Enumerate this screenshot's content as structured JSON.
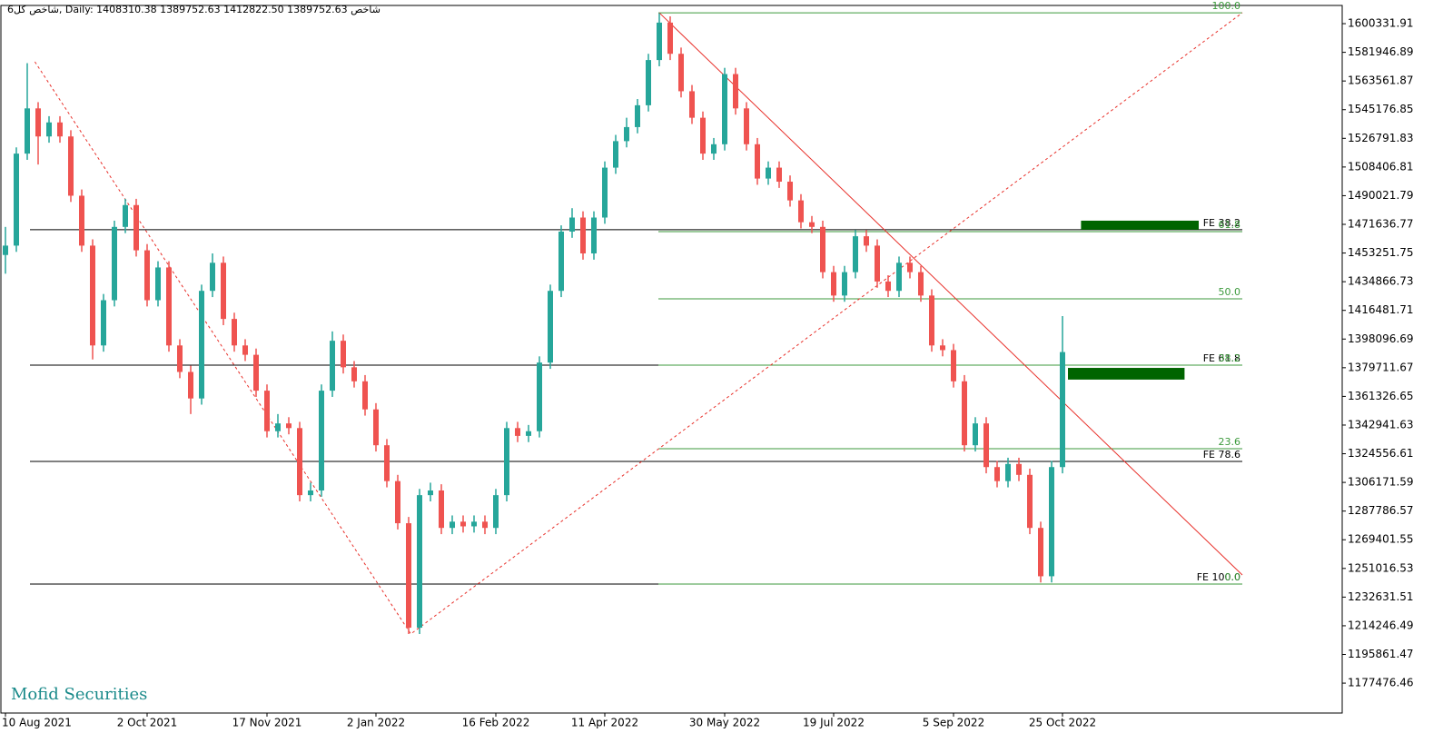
{
  "chart_data": {
    "type": "candlestick",
    "title": "شاخص کل6, Daily:  1408310.38 1389752.63 1412822.50 1389752.63  شاخص",
    "watermark": "Mofid Securities",
    "up_color": "#26a69a",
    "down_color": "#ef5350",
    "categories": [
      "10 Aug 2021",
      null,
      null,
      null,
      null,
      null,
      null,
      null,
      null,
      null,
      null,
      null,
      null,
      "2 Oct 2021",
      null,
      null,
      null,
      null,
      null,
      null,
      null,
      null,
      null,
      null,
      "17 Nov 2021",
      null,
      null,
      null,
      null,
      null,
      null,
      null,
      null,
      null,
      "2 Jan 2022",
      null,
      null,
      null,
      null,
      null,
      null,
      null,
      null,
      null,
      null,
      "16 Feb 2022",
      null,
      null,
      null,
      null,
      null,
      null,
      null,
      null,
      null,
      "11 Apr 2022",
      null,
      null,
      null,
      null,
      null,
      null,
      null,
      null,
      null,
      null,
      "30 May 2022",
      null,
      null,
      null,
      null,
      null,
      null,
      null,
      null,
      null,
      "19 Jul 2022",
      null,
      null,
      null,
      null,
      null,
      null,
      null,
      null,
      null,
      null,
      "5 Sep 2022",
      null,
      null,
      null,
      null,
      null,
      null,
      null,
      null,
      null,
      "25 Oct 2022"
    ],
    "open": [
      1452000,
      1458000,
      1517000,
      1546000,
      1528000,
      1537000,
      1528000,
      1490000,
      1458000,
      1394000,
      1423000,
      1470000,
      1484000,
      1455000,
      1423000,
      1444000,
      1394000,
      1377000,
      1360000,
      1429000,
      1447000,
      1411000,
      1394000,
      1388000,
      1365000,
      1339000,
      1344000,
      1341000,
      1298000,
      1301000,
      1365000,
      1397000,
      1380000,
      1371000,
      1353000,
      1330000,
      1307000,
      1280000,
      1213000,
      1298000,
      1301000,
      1277000,
      1281000,
      1278000,
      1281000,
      1277000,
      1298000,
      1341000,
      1336000,
      1339000,
      1383000,
      1429000,
      1467000,
      1476000,
      1453000,
      1476000,
      1508000,
      1525000,
      1534000,
      1548000,
      1577000,
      1601000,
      1581000,
      1557000,
      1540000,
      1517000,
      1523000,
      1568000,
      1546000,
      1523000,
      1501000,
      1508000,
      1499000,
      1487000,
      1473000,
      1470000,
      1441000,
      1426000,
      1441000,
      1464000,
      1458000,
      1435000,
      1429000,
      1447000,
      1441000,
      1426000,
      1394000,
      1391000,
      1371000,
      1330000,
      1344000,
      1316000,
      1307000,
      1318000,
      1311000,
      1277000,
      1246000,
      1316000
    ],
    "high": [
      1470000,
      1521000,
      1575000,
      1550000,
      1541000,
      1541000,
      1532000,
      1494000,
      1462000,
      1427000,
      1474000,
      1488000,
      1488000,
      1459000,
      1448000,
      1448000,
      1398000,
      1381000,
      1433000,
      1453000,
      1451000,
      1415000,
      1398000,
      1392000,
      1369000,
      1350000,
      1348000,
      1345000,
      1306000,
      1369000,
      1403000,
      1401000,
      1384000,
      1375000,
      1357000,
      1334000,
      1311000,
      1284000,
      1302000,
      1306000,
      1305000,
      1285000,
      1285000,
      1285000,
      1285000,
      1302000,
      1345000,
      1345000,
      1343000,
      1387000,
      1433000,
      1471000,
      1482000,
      1480000,
      1480000,
      1512000,
      1529000,
      1540000,
      1552000,
      1581000,
      1607000,
      1605000,
      1585000,
      1561000,
      1544000,
      1527000,
      1572000,
      1572000,
      1550000,
      1527000,
      1512000,
      1512000,
      1503000,
      1491000,
      1477000,
      1474000,
      1445000,
      1445000,
      1468000,
      1468000,
      1462000,
      1439000,
      1451000,
      1451000,
      1445000,
      1430000,
      1398000,
      1395000,
      1375000,
      1348000,
      1348000,
      1320000,
      1322000,
      1322000,
      1315000,
      1281000,
      1320000,
      1412822.5
    ],
    "low": [
      1440000,
      1454000,
      1513000,
      1510000,
      1524000,
      1524000,
      1486000,
      1454000,
      1385000,
      1390000,
      1419000,
      1466000,
      1451000,
      1419000,
      1419000,
      1390000,
      1373000,
      1350000,
      1356000,
      1425000,
      1407000,
      1390000,
      1384000,
      1361000,
      1335000,
      1335000,
      1337000,
      1294000,
      1294000,
      1297000,
      1361000,
      1376000,
      1367000,
      1349000,
      1326000,
      1303000,
      1276000,
      1209000,
      1209000,
      1294000,
      1273000,
      1273000,
      1274000,
      1274000,
      1273000,
      1273000,
      1294000,
      1332000,
      1332000,
      1335000,
      1379000,
      1425000,
      1463000,
      1449000,
      1449000,
      1472000,
      1504000,
      1521000,
      1530000,
      1544000,
      1573000,
      1577000,
      1553000,
      1536000,
      1513000,
      1513000,
      1519000,
      1542000,
      1519000,
      1497000,
      1497000,
      1495000,
      1483000,
      1469000,
      1466000,
      1437000,
      1422000,
      1422000,
      1437000,
      1454000,
      1431000,
      1425000,
      1425000,
      1437000,
      1422000,
      1390000,
      1387000,
      1367000,
      1326000,
      1326000,
      1312000,
      1303000,
      1303000,
      1307000,
      1273000,
      1242000,
      1242000,
      1312000
    ],
    "close": [
      1458000,
      1517000,
      1546000,
      1528000,
      1537000,
      1528000,
      1490000,
      1458000,
      1394000,
      1423000,
      1470000,
      1484000,
      1455000,
      1423000,
      1444000,
      1394000,
      1377000,
      1360000,
      1429000,
      1447000,
      1411000,
      1394000,
      1388000,
      1365000,
      1339000,
      1344000,
      1341000,
      1298000,
      1301000,
      1365000,
      1397000,
      1380000,
      1371000,
      1353000,
      1330000,
      1307000,
      1280000,
      1213000,
      1298000,
      1301000,
      1277000,
      1281000,
      1278000,
      1281000,
      1277000,
      1298000,
      1341000,
      1336000,
      1339000,
      1383000,
      1429000,
      1467000,
      1476000,
      1453000,
      1476000,
      1508000,
      1525000,
      1534000,
      1548000,
      1577000,
      1601000,
      1581000,
      1557000,
      1540000,
      1517000,
      1523000,
      1568000,
      1546000,
      1523000,
      1501000,
      1508000,
      1499000,
      1487000,
      1473000,
      1470000,
      1441000,
      1426000,
      1441000,
      1464000,
      1458000,
      1435000,
      1429000,
      1447000,
      1441000,
      1426000,
      1394000,
      1391000,
      1371000,
      1330000,
      1344000,
      1316000,
      1307000,
      1318000,
      1311000,
      1277000,
      1246000,
      1316000,
      1389752.63
    ],
    "ylim": [
      1158300,
      1612000
    ],
    "yticks": [
      1600331.91,
      1581946.89,
      1563561.87,
      1545176.85,
      1526791.83,
      1508406.81,
      1490021.79,
      1471636.77,
      1453251.75,
      1434866.73,
      1416481.71,
      1398096.69,
      1379711.67,
      1361326.65,
      1342941.63,
      1324556.61,
      1306171.59,
      1287786.57,
      1269401.55,
      1251016.53,
      1232631.51,
      1214246.49,
      1195861.47,
      1177476.46
    ],
    "retracement": {
      "color": "#3c9a3c",
      "levels": [
        {
          "label": "100.0",
          "value": 1607300
        },
        {
          "label": "61.8",
          "value": 1467000
        },
        {
          "label": "50.0",
          "value": 1423900
        },
        {
          "label": "38.2",
          "value": 1381400
        },
        {
          "label": "23.6",
          "value": 1327800
        },
        {
          "label": "0.0",
          "value": 1241000
        }
      ]
    },
    "expansion": {
      "color": "#000000",
      "levels": [
        {
          "label": "FE 38.2",
          "value": 1468200
        },
        {
          "label": "FE 61.8",
          "value": 1381400
        },
        {
          "label": "FE 78.6",
          "value": 1319600
        },
        {
          "label": "FE 100.0",
          "value": 1241000
        }
      ]
    },
    "trendlines": [
      {
        "color": "#e8302a",
        "dashed": false,
        "points": [
          [
            60,
            1607300
          ],
          [
            113.5,
            1246800
          ]
        ]
      },
      {
        "color": "#e8302a",
        "dashed": true,
        "points": [
          [
            2.7,
            1575900
          ],
          [
            37.2,
            1209000
          ],
          [
            113.5,
            1607300
          ]
        ]
      }
    ],
    "zones": [
      {
        "color": "#006400",
        "x": [
          98.7,
          109.5
        ],
        "y": [
          1468200,
          1474000
        ]
      },
      {
        "color": "#006400",
        "x": [
          97.5,
          108.2
        ],
        "y": [
          1372100,
          1379600
        ]
      }
    ]
  }
}
